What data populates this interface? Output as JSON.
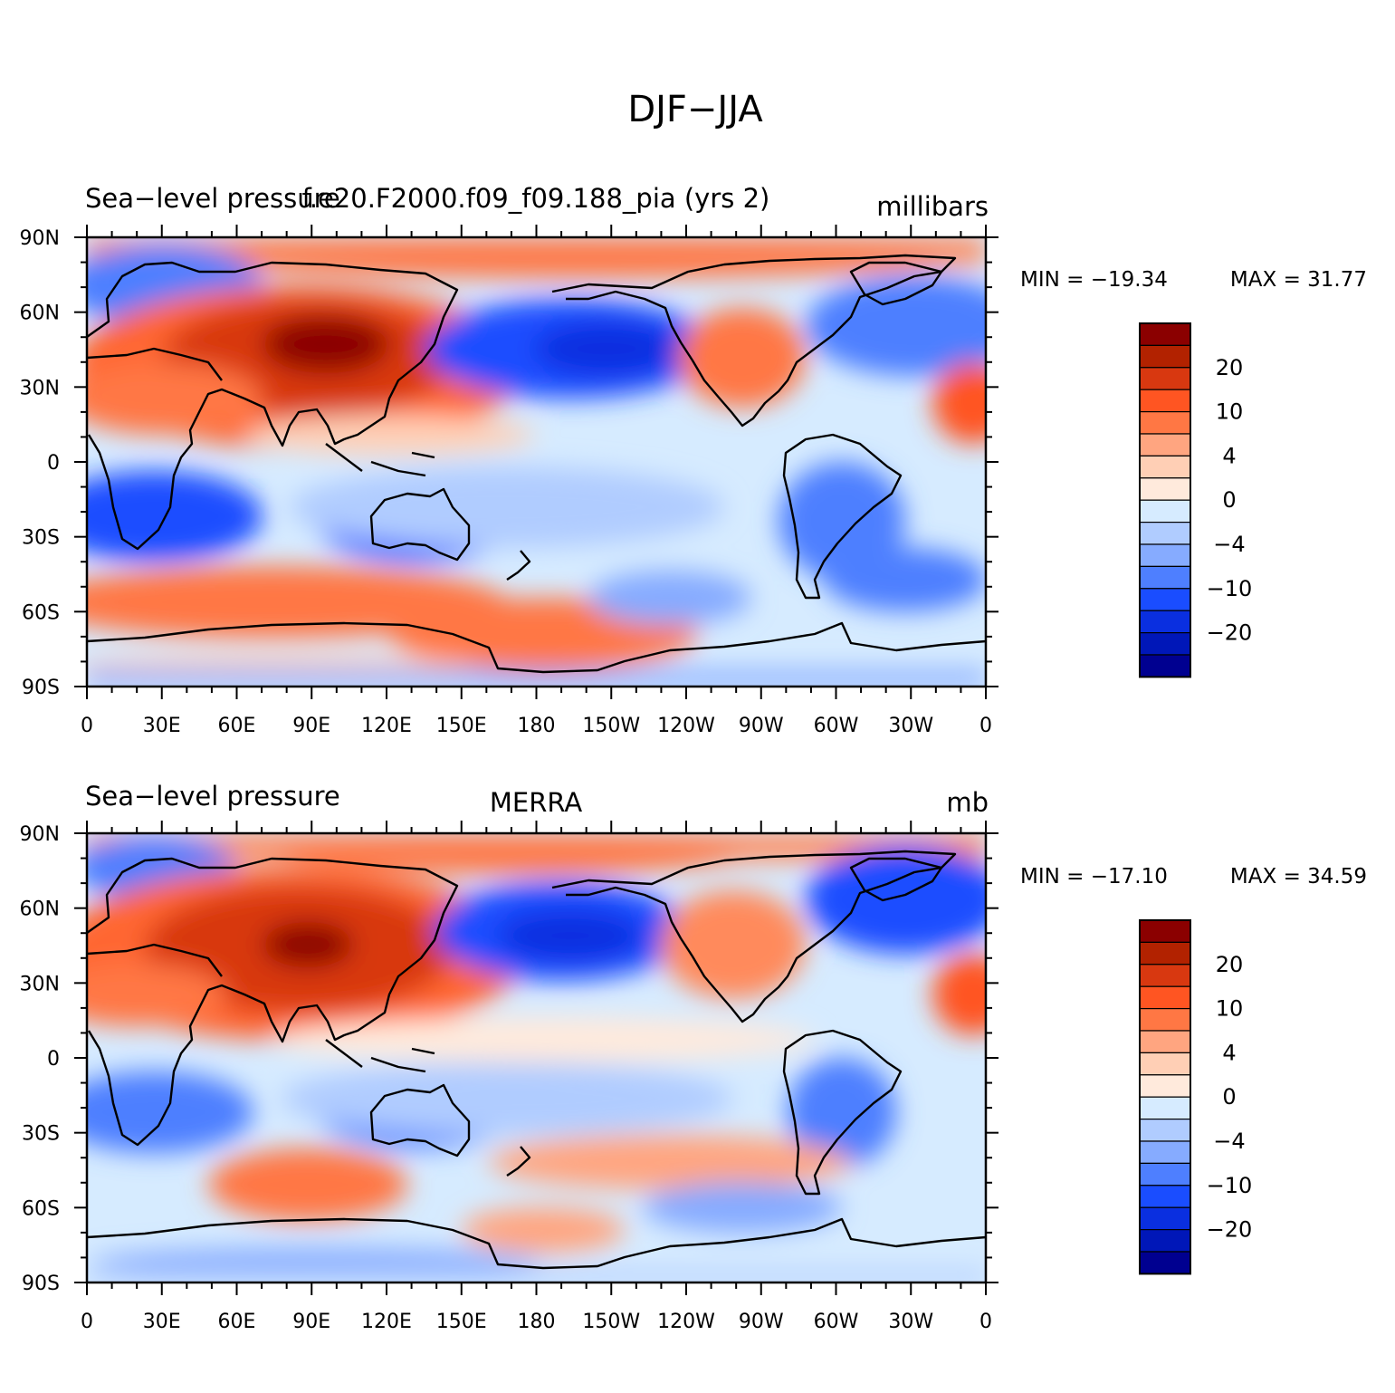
{
  "chart_data": {
    "type": "heatmap",
    "title": "DJF−JJA",
    "x_tick_labels": [
      "0",
      "30E",
      "60E",
      "90E",
      "120E",
      "150E",
      "180",
      "150W",
      "120W",
      "90W",
      "60W",
      "30W",
      "0"
    ],
    "y_tick_labels": [
      "90N",
      "60N",
      "30N",
      "0",
      "30S",
      "60S",
      "90S"
    ],
    "xlim": [
      0,
      360
    ],
    "ylim": [
      -90,
      90
    ],
    "colorbar": {
      "levels": [
        -20,
        -10,
        -4,
        0,
        4,
        10,
        20
      ],
      "labels": [
        "20",
        "10",
        "4",
        "0",
        "−4",
        "−10",
        "−20"
      ],
      "colors": [
        "#8b0000",
        "#b22200",
        "#d83810",
        "#ff5522",
        "#ff7744",
        "#ffa580",
        "#ffcfb5",
        "#ffeadc",
        "#d6ebff",
        "#b0ccff",
        "#86abff",
        "#4e7fff",
        "#1a4dff",
        "#0a2fe0",
        "#0017b8",
        "#000090"
      ]
    },
    "panels": [
      {
        "left_title": "Sea−level pressure",
        "center_title": "f.e20.F2000.f09_f09.188_pia (yrs 2)",
        "right_title": "millibars",
        "min_label": "MIN = −19.34",
        "max_label": "MAX =   31.77",
        "min": -19.34,
        "max": 31.77
      },
      {
        "left_title": "Sea−level pressure",
        "center_title": "MERRA",
        "right_title": "mb",
        "min_label": "MIN = −17.10",
        "max_label": "MAX =   34.59",
        "min": -17.1,
        "max": 34.59
      }
    ]
  }
}
